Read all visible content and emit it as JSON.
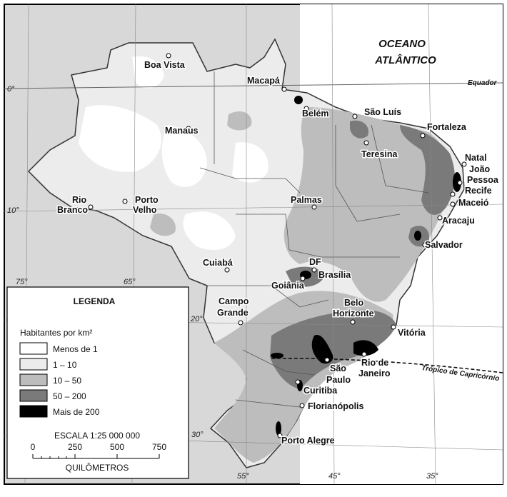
{
  "ocean": {
    "line1": "OCEANO",
    "line2": "ATLÂNTICO"
  },
  "lines": {
    "equator": "Equador",
    "tropic": "Trópico de Capricórnio"
  },
  "coords": {
    "lat_0": "0°",
    "lat_10": "10°",
    "lat_20": "20°",
    "lat_30": "30°",
    "lon_75": "75°",
    "lon_65": "65°",
    "lon_55": "55°",
    "lon_45": "45°",
    "lon_35": "35°"
  },
  "cities": {
    "boa_vista": "Boa Vista",
    "macapa": "Macapá",
    "belem": "Belém",
    "sao_luis": "São Luís",
    "fortaleza": "Fortaleza",
    "manaus": "Manaus",
    "teresina": "Teresina",
    "natal": "Natal",
    "joao_pessoa_1": "João",
    "joao_pessoa_2": "Pessoa",
    "recife": "Recife",
    "maceio": "Maceió",
    "aracaju": "Aracaju",
    "salvador": "Salvador",
    "rio_branco_1": "Rio",
    "rio_branco_2": "Branco",
    "porto_velho_1": "Porto",
    "porto_velho_2": "Velho",
    "palmas": "Palmas",
    "cuiaba": "Cuiabá",
    "df": "DF",
    "brasilia": "Brasília",
    "goiania": "Goiânia",
    "campo_grande_1": "Campo",
    "campo_grande_2": "Grande",
    "belo_horizonte_1": "Belo",
    "belo_horizonte_2": "Horizonte",
    "vitoria": "Vitória",
    "sao_paulo_1": "São",
    "sao_paulo_2": "Paulo",
    "rio_de_janeiro_1": "Rio de",
    "rio_de_janeiro_2": "Janeiro",
    "curitiba": "Curitiba",
    "florianopolis": "Florianópolis",
    "porto_alegre": "Porto Alegre"
  },
  "legend": {
    "title": "LEGENDA",
    "subtitle": "Habitantes por km²",
    "classes": [
      {
        "label": "Menos de 1",
        "color": "#ffffff"
      },
      {
        "label": "1 – 10",
        "color": "#ececec"
      },
      {
        "label": "10 – 50",
        "color": "#bdbdbd"
      },
      {
        "label": "50 – 200",
        "color": "#7a7a7a"
      },
      {
        "label": "Mais de 200",
        "color": "#000000"
      }
    ]
  },
  "scale": {
    "title": "ESCALA 1:25 000 000",
    "ticks": [
      "0",
      "250",
      "500",
      "750"
    ],
    "unit": "QUILÔMETROS"
  }
}
